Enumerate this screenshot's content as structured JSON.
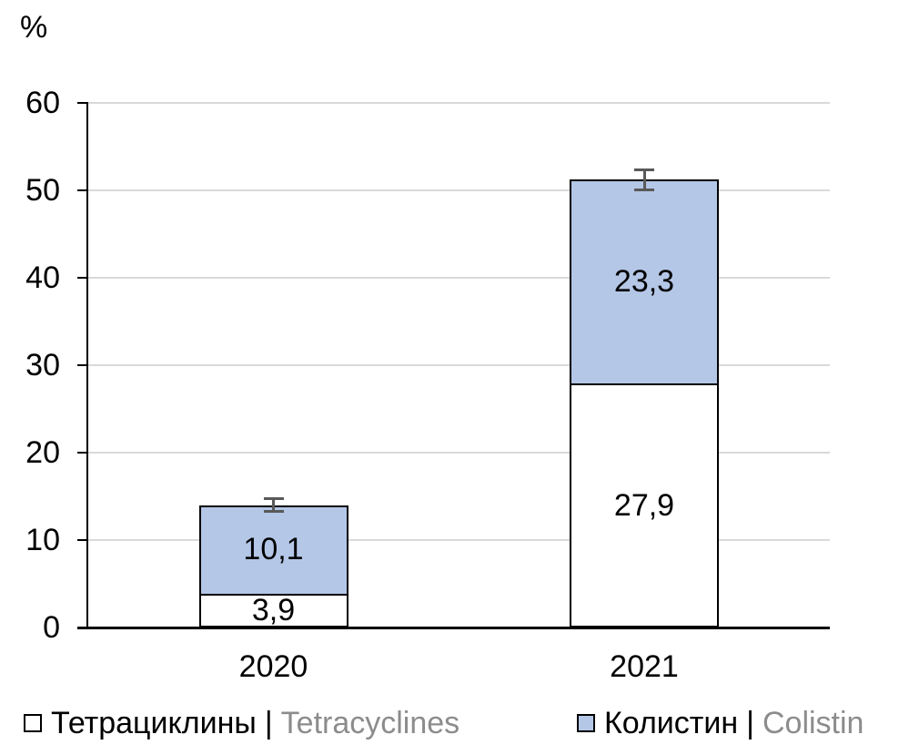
{
  "chart_data": {
    "type": "bar",
    "subtype": "stacked-column",
    "y_axis_title": "%",
    "categories": [
      "2020",
      "2021"
    ],
    "series": [
      {
        "name_ru": "Тетрациклины",
        "name_en": "Tetracyclines",
        "fill": "#ffffff",
        "values": [
          3.9,
          27.9
        ],
        "labels": [
          "3,9",
          "27,9"
        ]
      },
      {
        "name_ru": "Колистин",
        "name_en": "Colistin",
        "fill": "#b4c7e7",
        "values": [
          10.1,
          23.3
        ],
        "labels": [
          "10,1",
          "23,3"
        ]
      }
    ],
    "totals": [
      14.0,
      51.2
    ],
    "error_bars": {
      "plus_minus": [
        0.9,
        1.3
      ]
    },
    "ylim": [
      0,
      60
    ],
    "y_ticks": [
      0,
      10,
      20,
      30,
      40,
      50,
      60
    ],
    "grid": true,
    "legend_position": "bottom",
    "legend_separator": "|"
  },
  "colors": {
    "text": "#000000",
    "secondary_text": "#8c8c8c",
    "gridline": "#d9d9d9",
    "axis": "#000000",
    "error_bar": "#595959",
    "bar_border": "#000000"
  }
}
